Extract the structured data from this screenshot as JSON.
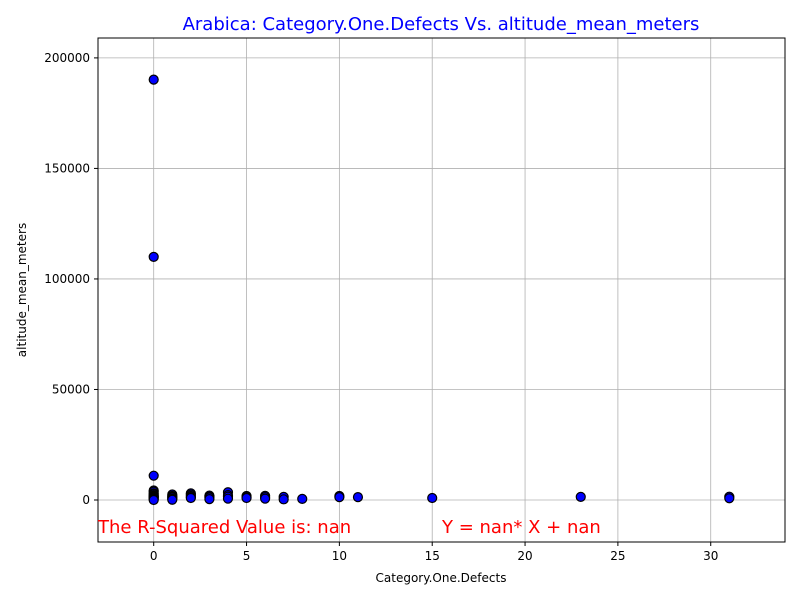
{
  "chart_data": {
    "type": "scatter",
    "title": "Arabica: Category.One.Defects Vs. altitude_mean_meters",
    "title_color": "#0000ff",
    "xlabel": "Category.One.Defects",
    "ylabel": "altitude_mean_meters",
    "xlim": [
      -3,
      34
    ],
    "ylim": [
      -19000,
      209000
    ],
    "xticks": [
      0,
      5,
      10,
      15,
      20,
      25,
      30
    ],
    "yticks": [
      0,
      50000,
      100000,
      150000,
      200000
    ],
    "grid": true,
    "marker_fill": "#0000ff",
    "marker_edge": "#000000",
    "points": [
      {
        "x": 0,
        "y": 190164
      },
      {
        "x": 0,
        "y": 110000
      },
      {
        "x": 0,
        "y": 11000
      },
      {
        "x": 0,
        "y": 4287
      },
      {
        "x": 0,
        "y": 3800
      },
      {
        "x": 0,
        "y": 3000
      },
      {
        "x": 0,
        "y": 2560
      },
      {
        "x": 0,
        "y": 2000
      },
      {
        "x": 0,
        "y": 1700
      },
      {
        "x": 0,
        "y": 1400
      },
      {
        "x": 0,
        "y": 1200
      },
      {
        "x": 0,
        "y": 1000
      },
      {
        "x": 0,
        "y": 700
      },
      {
        "x": 0,
        "y": 400
      },
      {
        "x": 0,
        "y": 1
      },
      {
        "x": 1,
        "y": 2500
      },
      {
        "x": 1,
        "y": 1800
      },
      {
        "x": 1,
        "y": 1400
      },
      {
        "x": 1,
        "y": 1100
      },
      {
        "x": 1,
        "y": 500
      },
      {
        "x": 1,
        "y": 100
      },
      {
        "x": 2,
        "y": 3000
      },
      {
        "x": 2,
        "y": 2400
      },
      {
        "x": 2,
        "y": 1800
      },
      {
        "x": 2,
        "y": 1300
      },
      {
        "x": 2,
        "y": 900
      },
      {
        "x": 3,
        "y": 2000
      },
      {
        "x": 3,
        "y": 1500
      },
      {
        "x": 3,
        "y": 1100
      },
      {
        "x": 3,
        "y": 400
      },
      {
        "x": 4,
        "y": 3500
      },
      {
        "x": 4,
        "y": 2200
      },
      {
        "x": 4,
        "y": 1500
      },
      {
        "x": 4,
        "y": 600
      },
      {
        "x": 5,
        "y": 1800
      },
      {
        "x": 5,
        "y": 1300
      },
      {
        "x": 5,
        "y": 900
      },
      {
        "x": 6,
        "y": 1900
      },
      {
        "x": 6,
        "y": 1300
      },
      {
        "x": 6,
        "y": 600
      },
      {
        "x": 7,
        "y": 1400
      },
      {
        "x": 7,
        "y": 300
      },
      {
        "x": 8,
        "y": 500
      },
      {
        "x": 10,
        "y": 1800
      },
      {
        "x": 10,
        "y": 1300
      },
      {
        "x": 11,
        "y": 1300
      },
      {
        "x": 15,
        "y": 900
      },
      {
        "x": 23,
        "y": 1400
      },
      {
        "x": 31,
        "y": 1500
      },
      {
        "x": 31,
        "y": 800
      }
    ],
    "annotations": [
      {
        "text": "The R-Squared Value is: nan",
        "color": "#ff0000"
      },
      {
        "text": "Y = nan* X + nan",
        "color": "#ff0000"
      }
    ]
  }
}
